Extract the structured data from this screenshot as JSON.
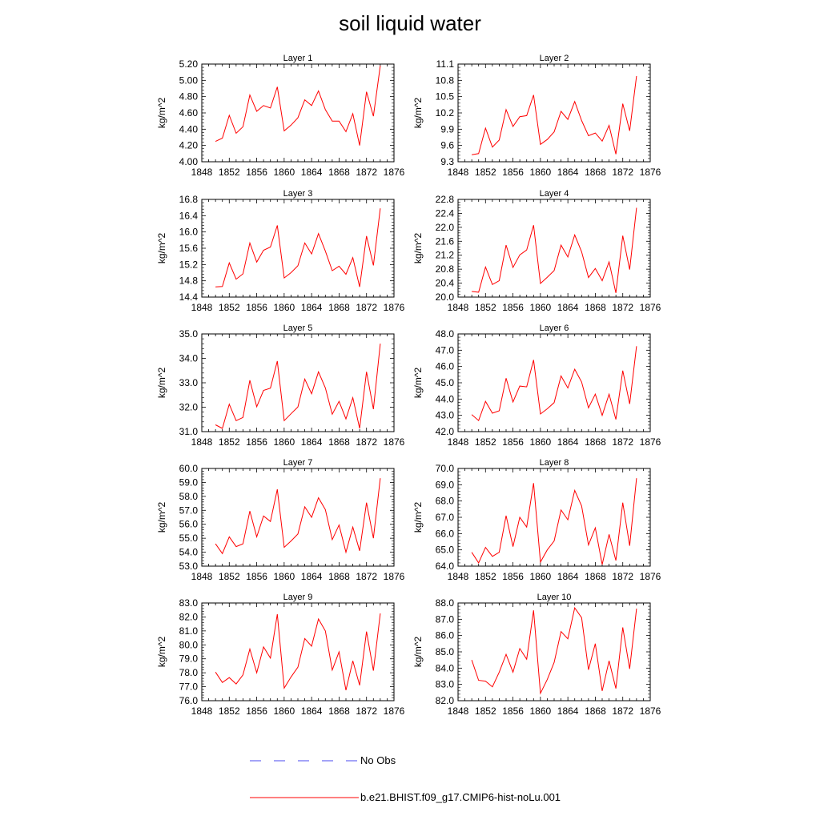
{
  "title": "soil liquid water",
  "legend": [
    {
      "label": "No Obs",
      "color": "#4a4af0",
      "dashed": true
    },
    {
      "label": "b.e21.BHIST.f09_g17.CMIP6-hist-noLu.001",
      "color": "#ff0000",
      "dashed": false
    }
  ],
  "chart_data": [
    {
      "type": "line",
      "title": "Layer 1",
      "ylabel": "kg/m^2",
      "xlim": [
        1848,
        1876
      ],
      "xticks": [
        1848,
        1852,
        1856,
        1860,
        1864,
        1868,
        1872,
        1876
      ],
      "ylim": [
        4.0,
        5.2
      ],
      "yticks": [
        "4.00",
        "4.20",
        "4.40",
        "4.60",
        "4.80",
        "5.00",
        "5.20"
      ],
      "x": [
        1850,
        1851,
        1852,
        1853,
        1854,
        1855,
        1856,
        1857,
        1858,
        1859,
        1860,
        1861,
        1862,
        1863,
        1864,
        1865,
        1866,
        1867,
        1868,
        1869,
        1870,
        1871,
        1872,
        1873,
        1874
      ],
      "series": [
        {
          "color": "#ff0000",
          "values": [
            4.25,
            4.29,
            4.57,
            4.35,
            4.43,
            4.82,
            4.62,
            4.69,
            4.66,
            4.92,
            4.38,
            4.45,
            4.54,
            4.76,
            4.69,
            4.87,
            4.64,
            4.5,
            4.5,
            4.37,
            4.59,
            4.2,
            4.86,
            4.56,
            5.18
          ]
        }
      ]
    },
    {
      "type": "line",
      "title": "Layer 2",
      "ylabel": "kg/m^2",
      "xlim": [
        1848,
        1876
      ],
      "xticks": [
        1848,
        1852,
        1856,
        1860,
        1864,
        1868,
        1872,
        1876
      ],
      "ylim": [
        9.3,
        11.1
      ],
      "yticks": [
        "9.3",
        "9.6",
        "9.9",
        "10.2",
        "10.5",
        "10.8",
        "11.1"
      ],
      "x": [
        1850,
        1851,
        1852,
        1853,
        1854,
        1855,
        1856,
        1857,
        1858,
        1859,
        1860,
        1861,
        1862,
        1863,
        1864,
        1865,
        1866,
        1867,
        1868,
        1869,
        1870,
        1871,
        1872,
        1873,
        1874
      ],
      "series": [
        {
          "color": "#ff0000",
          "values": [
            9.43,
            9.45,
            9.92,
            9.57,
            9.7,
            10.26,
            9.95,
            10.13,
            10.15,
            10.53,
            9.62,
            9.71,
            9.85,
            10.23,
            10.08,
            10.41,
            10.06,
            9.78,
            9.83,
            9.68,
            9.97,
            9.44,
            10.37,
            9.87,
            10.88
          ]
        }
      ]
    },
    {
      "type": "line",
      "title": "Layer 3",
      "ylabel": "kg/m^2",
      "xlim": [
        1848,
        1876
      ],
      "xticks": [
        1848,
        1852,
        1856,
        1860,
        1864,
        1868,
        1872,
        1876
      ],
      "ylim": [
        14.4,
        16.8
      ],
      "yticks": [
        "14.4",
        "14.8",
        "15.2",
        "15.6",
        "16.0",
        "16.4",
        "16.8"
      ],
      "x": [
        1850,
        1851,
        1852,
        1853,
        1854,
        1855,
        1856,
        1857,
        1858,
        1859,
        1860,
        1861,
        1862,
        1863,
        1864,
        1865,
        1866,
        1867,
        1868,
        1869,
        1870,
        1871,
        1872,
        1873,
        1874
      ],
      "series": [
        {
          "color": "#ff0000",
          "values": [
            14.65,
            14.66,
            15.24,
            14.84,
            14.97,
            15.73,
            15.26,
            15.55,
            15.63,
            16.16,
            14.87,
            15.0,
            15.17,
            15.73,
            15.46,
            15.96,
            15.53,
            15.05,
            15.16,
            14.96,
            15.37,
            14.65,
            15.9,
            15.18,
            16.58
          ]
        }
      ]
    },
    {
      "type": "line",
      "title": "Layer 4",
      "ylabel": "kg/m^2",
      "xlim": [
        1848,
        1876
      ],
      "xticks": [
        1848,
        1852,
        1856,
        1860,
        1864,
        1868,
        1872,
        1876
      ],
      "ylim": [
        20.0,
        22.8
      ],
      "yticks": [
        "20.0",
        "20.4",
        "20.8",
        "21.2",
        "21.6",
        "22.0",
        "22.4",
        "22.8"
      ],
      "x": [
        1850,
        1851,
        1852,
        1853,
        1854,
        1855,
        1856,
        1857,
        1858,
        1859,
        1860,
        1861,
        1862,
        1863,
        1864,
        1865,
        1866,
        1867,
        1868,
        1869,
        1870,
        1871,
        1872,
        1873,
        1874
      ],
      "series": [
        {
          "color": "#ff0000",
          "values": [
            20.16,
            20.14,
            20.86,
            20.36,
            20.47,
            21.49,
            20.85,
            21.21,
            21.35,
            22.06,
            20.39,
            20.57,
            20.76,
            21.49,
            21.15,
            21.78,
            21.3,
            20.56,
            20.82,
            20.47,
            21.01,
            20.12,
            21.76,
            20.79,
            22.56
          ]
        }
      ]
    },
    {
      "type": "line",
      "title": "Layer 5",
      "ylabel": "kg/m^2",
      "xlim": [
        1848,
        1876
      ],
      "xticks": [
        1848,
        1852,
        1856,
        1860,
        1864,
        1868,
        1872,
        1876
      ],
      "ylim": [
        31.0,
        35.0
      ],
      "yticks": [
        "31.0",
        "32.0",
        "33.0",
        "34.0",
        "35.0"
      ],
      "x": [
        1850,
        1851,
        1852,
        1853,
        1854,
        1855,
        1856,
        1857,
        1858,
        1859,
        1860,
        1861,
        1862,
        1863,
        1864,
        1865,
        1866,
        1867,
        1868,
        1869,
        1870,
        1871,
        1872,
        1873,
        1874
      ],
      "series": [
        {
          "color": "#ff0000",
          "values": [
            31.28,
            31.13,
            32.12,
            31.45,
            31.58,
            33.1,
            32.02,
            32.69,
            32.78,
            33.89,
            31.45,
            31.73,
            32.01,
            33.15,
            32.55,
            33.45,
            32.79,
            31.71,
            32.24,
            31.52,
            32.39,
            31.13,
            33.45,
            31.92,
            34.6
          ]
        }
      ]
    },
    {
      "type": "line",
      "title": "Layer 6",
      "ylabel": "kg/m^2",
      "xlim": [
        1848,
        1876
      ],
      "xticks": [
        1848,
        1852,
        1856,
        1860,
        1864,
        1868,
        1872,
        1876
      ],
      "ylim": [
        42.0,
        48.0
      ],
      "yticks": [
        "42.0",
        "43.0",
        "44.0",
        "45.0",
        "46.0",
        "47.0",
        "48.0"
      ],
      "x": [
        1850,
        1851,
        1852,
        1853,
        1854,
        1855,
        1856,
        1857,
        1858,
        1859,
        1860,
        1861,
        1862,
        1863,
        1864,
        1865,
        1866,
        1867,
        1868,
        1869,
        1870,
        1871,
        1872,
        1873,
        1874
      ],
      "series": [
        {
          "color": "#ff0000",
          "values": [
            43.05,
            42.68,
            43.86,
            43.13,
            43.28,
            45.28,
            43.82,
            44.8,
            44.75,
            46.4,
            43.08,
            43.4,
            43.78,
            45.42,
            44.68,
            45.83,
            45.05,
            43.46,
            44.3,
            43.0,
            44.3,
            42.75,
            45.75,
            43.7,
            47.25
          ]
        }
      ]
    },
    {
      "type": "line",
      "title": "Layer 7",
      "ylabel": "kg/m^2",
      "xlim": [
        1848,
        1876
      ],
      "xticks": [
        1848,
        1852,
        1856,
        1860,
        1864,
        1868,
        1872,
        1876
      ],
      "ylim": [
        53.0,
        60.0
      ],
      "yticks": [
        "53.0",
        "54.0",
        "55.0",
        "56.0",
        "57.0",
        "58.0",
        "59.0",
        "60.0"
      ],
      "x": [
        1850,
        1851,
        1852,
        1853,
        1854,
        1855,
        1856,
        1857,
        1858,
        1859,
        1860,
        1861,
        1862,
        1863,
        1864,
        1865,
        1866,
        1867,
        1868,
        1869,
        1870,
        1871,
        1872,
        1873,
        1874
      ],
      "series": [
        {
          "color": "#ff0000",
          "values": [
            54.6,
            53.9,
            55.1,
            54.4,
            54.6,
            56.95,
            55.1,
            56.6,
            56.2,
            58.5,
            54.35,
            54.8,
            55.3,
            57.25,
            56.5,
            57.9,
            57.05,
            54.9,
            55.95,
            54.0,
            55.8,
            54.1,
            57.55,
            55.0,
            59.3
          ]
        }
      ]
    },
    {
      "type": "line",
      "title": "Layer 8",
      "ylabel": "kg/m^2",
      "xlim": [
        1848,
        1876
      ],
      "xticks": [
        1848,
        1852,
        1856,
        1860,
        1864,
        1868,
        1872,
        1876
      ],
      "ylim": [
        64.0,
        70.0
      ],
      "yticks": [
        "64.0",
        "65.0",
        "66.0",
        "67.0",
        "68.0",
        "69.0",
        "70.0"
      ],
      "x": [
        1850,
        1851,
        1852,
        1853,
        1854,
        1855,
        1856,
        1857,
        1858,
        1859,
        1860,
        1861,
        1862,
        1863,
        1864,
        1865,
        1866,
        1867,
        1868,
        1869,
        1870,
        1871,
        1872,
        1873,
        1874
      ],
      "series": [
        {
          "color": "#ff0000",
          "values": [
            64.85,
            64.2,
            65.15,
            64.6,
            64.85,
            67.1,
            65.2,
            67.0,
            66.4,
            69.1,
            64.25,
            65.0,
            65.55,
            67.45,
            66.85,
            68.65,
            67.7,
            65.3,
            66.35,
            64.1,
            65.95,
            64.35,
            67.9,
            65.25,
            69.4
          ]
        }
      ]
    },
    {
      "type": "line",
      "title": "Layer 9",
      "ylabel": "kg/m^2",
      "xlim": [
        1848,
        1876
      ],
      "xticks": [
        1848,
        1852,
        1856,
        1860,
        1864,
        1868,
        1872,
        1876
      ],
      "ylim": [
        76.0,
        83.0
      ],
      "yticks": [
        "76.0",
        "77.0",
        "78.0",
        "79.0",
        "80.0",
        "81.0",
        "82.0",
        "83.0"
      ],
      "x": [
        1850,
        1851,
        1852,
        1853,
        1854,
        1855,
        1856,
        1857,
        1858,
        1859,
        1860,
        1861,
        1862,
        1863,
        1864,
        1865,
        1866,
        1867,
        1868,
        1869,
        1870,
        1871,
        1872,
        1873,
        1874
      ],
      "series": [
        {
          "color": "#ff0000",
          "values": [
            78.05,
            77.3,
            77.65,
            77.2,
            77.85,
            79.7,
            78.0,
            79.85,
            79.05,
            82.2,
            76.9,
            77.7,
            78.4,
            80.45,
            79.9,
            81.85,
            81.0,
            78.2,
            79.5,
            76.75,
            78.85,
            77.1,
            80.95,
            78.15,
            82.25
          ]
        }
      ]
    },
    {
      "type": "line",
      "title": "Layer 10",
      "ylabel": "kg/m^2",
      "xlim": [
        1848,
        1876
      ],
      "xticks": [
        1848,
        1852,
        1856,
        1860,
        1864,
        1868,
        1872,
        1876
      ],
      "ylim": [
        82.0,
        88.0
      ],
      "yticks": [
        "82.0",
        "83.0",
        "84.0",
        "85.0",
        "86.0",
        "87.0",
        "88.0"
      ],
      "x": [
        1850,
        1851,
        1852,
        1853,
        1854,
        1855,
        1856,
        1857,
        1858,
        1859,
        1860,
        1861,
        1862,
        1863,
        1864,
        1865,
        1866,
        1867,
        1868,
        1869,
        1870,
        1871,
        1872,
        1873,
        1874
      ],
      "series": [
        {
          "color": "#ff0000",
          "values": [
            84.5,
            83.25,
            83.2,
            82.85,
            83.75,
            84.85,
            83.75,
            85.2,
            84.55,
            87.55,
            82.45,
            83.3,
            84.35,
            86.25,
            85.8,
            87.7,
            87.1,
            83.9,
            85.5,
            82.6,
            84.45,
            82.75,
            86.5,
            83.95,
            87.65
          ]
        }
      ]
    }
  ]
}
